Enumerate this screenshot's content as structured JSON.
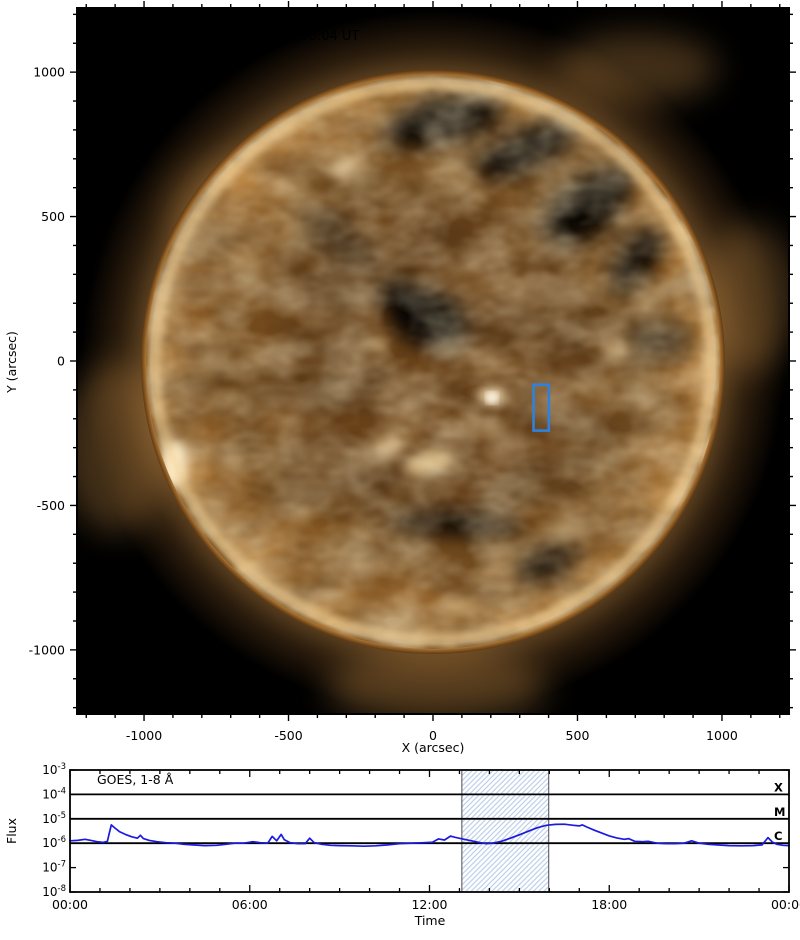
{
  "colors": {
    "figure_background": "#ffffff",
    "sun_plot_background": "#000000",
    "title_text": "#e9e7e2",
    "axis_text": "#000000",
    "goes_line_blue": "#1a1ae0",
    "annotation_blue": "#2e82dd",
    "hatch_blue": "#b9cce8",
    "hatch_border_gray": "#4d4d4d"
  },
  "chart_data": [
    {
      "type": "image",
      "title": "AIA 0193, 17-Nov-2025, 12:00:04 UT",
      "xlabel": "X (arcsec)",
      "ylabel": "Y (arcsec)",
      "xlim": [
        -1232,
        1232
      ],
      "ylim": [
        -1222,
        1222
      ],
      "x_ticks": [
        -1000,
        -500,
        0,
        500,
        1000
      ],
      "y_ticks": [
        1000,
        500,
        0,
        -500,
        -1000
      ],
      "minor_tick_step": 100,
      "annotation_box": {
        "x_arcsec": [
          348,
          401
        ],
        "y_arcsec": [
          -241,
          -82
        ]
      },
      "description": "SDO/AIA 193 A full-disk EUV solar image in gold/sepia tones: bright limb ring and corona glow, dark coronal holes across the northern hemisphere and center, dark southern filament channel, bright active regions near disk center and on the east/west limbs; blue rectangle marks a target region south-west of disk center."
    },
    {
      "type": "line",
      "legend": "GOES, 1-8 Å",
      "xlabel": "Time",
      "ylabel": "Flux",
      "xlim_hours": [
        0,
        24
      ],
      "x_tick_hours": [
        0,
        6,
        12,
        18,
        24
      ],
      "x_tick_labels": [
        "00:00",
        "06:00",
        "12:00",
        "18:00",
        "00:00"
      ],
      "x_minor_step_hours": 1,
      "ylim": [
        1e-08,
        0.001
      ],
      "y_tick_exponents": [
        -3,
        -4,
        -5,
        -6,
        -7,
        -8
      ],
      "flare_class_lines": [
        {
          "label": "X",
          "flux": 0.0001
        },
        {
          "label": "M",
          "flux": 1e-05
        },
        {
          "label": "C",
          "flux": 1e-06
        }
      ],
      "hatched_region_hours": [
        13.08,
        15.98
      ],
      "series": [
        {
          "name": "GOES, 1-8 Å",
          "color": "#1a1ae0",
          "points": [
            [
              0,
              1.25e-06
            ],
            [
              0.25,
              1.3e-06
            ],
            [
              0.5,
              1.45e-06
            ],
            [
              0.7,
              1.3e-06
            ],
            [
              0.9,
              1.15e-06
            ],
            [
              1.1,
              1.08e-06
            ],
            [
              1.25,
              1.2e-06
            ],
            [
              1.3,
              2.2e-06
            ],
            [
              1.38,
              5.6e-06
            ],
            [
              1.5,
              4.2e-06
            ],
            [
              1.65,
              3e-06
            ],
            [
              1.85,
              2.3e-06
            ],
            [
              2.05,
              1.85e-06
            ],
            [
              2.25,
              1.6e-06
            ],
            [
              2.35,
              2.1e-06
            ],
            [
              2.45,
              1.55e-06
            ],
            [
              2.65,
              1.3e-06
            ],
            [
              2.9,
              1.15e-06
            ],
            [
              3.2,
              1.05e-06
            ],
            [
              3.5,
              1e-06
            ],
            [
              3.8,
              9e-07
            ],
            [
              4.1,
              8.5e-07
            ],
            [
              4.5,
              8e-07
            ],
            [
              4.9,
              8.2e-07
            ],
            [
              5.2,
              9e-07
            ],
            [
              5.5,
              1e-06
            ],
            [
              5.8,
              1e-06
            ],
            [
              6.1,
              1.15e-06
            ],
            [
              6.35,
              1.05e-06
            ],
            [
              6.6,
              1e-06
            ],
            [
              6.75,
              1.9e-06
            ],
            [
              6.9,
              1.25e-06
            ],
            [
              7.05,
              2.3e-06
            ],
            [
              7.15,
              1.4e-06
            ],
            [
              7.35,
              1.05e-06
            ],
            [
              7.6,
              9.5e-07
            ],
            [
              7.85,
              9.5e-07
            ],
            [
              8.0,
              1.6e-06
            ],
            [
              8.15,
              1.05e-06
            ],
            [
              8.4,
              9e-07
            ],
            [
              8.7,
              8.2e-07
            ],
            [
              9.0,
              8e-07
            ],
            [
              9.4,
              7.8e-07
            ],
            [
              9.8,
              7.5e-07
            ],
            [
              10.2,
              7.8e-07
            ],
            [
              10.6,
              8.5e-07
            ],
            [
              11.0,
              9.5e-07
            ],
            [
              11.4,
              1e-06
            ],
            [
              11.8,
              1.05e-06
            ],
            [
              12.1,
              1.1e-06
            ],
            [
              12.3,
              1.5e-06
            ],
            [
              12.5,
              1.35e-06
            ],
            [
              12.7,
              1.95e-06
            ],
            [
              12.85,
              1.75e-06
            ],
            [
              13.1,
              1.5e-06
            ],
            [
              13.4,
              1.25e-06
            ],
            [
              13.7,
              1.05e-06
            ],
            [
              13.9,
              9.5e-07
            ],
            [
              14.1,
              1e-06
            ],
            [
              14.4,
              1.2e-06
            ],
            [
              14.7,
              1.6e-06
            ],
            [
              15.0,
              2.2e-06
            ],
            [
              15.3,
              3.1e-06
            ],
            [
              15.6,
              4.3e-06
            ],
            [
              15.9,
              5.4e-06
            ],
            [
              16.2,
              5.9e-06
            ],
            [
              16.5,
              6e-06
            ],
            [
              16.8,
              5.4e-06
            ],
            [
              17.0,
              5.1e-06
            ],
            [
              17.1,
              5.6e-06
            ],
            [
              17.25,
              4.6e-06
            ],
            [
              17.5,
              3.4e-06
            ],
            [
              17.75,
              2.6e-06
            ],
            [
              18.0,
              2e-06
            ],
            [
              18.25,
              1.65e-06
            ],
            [
              18.5,
              1.45e-06
            ],
            [
              18.65,
              1.55e-06
            ],
            [
              18.85,
              1.2e-06
            ],
            [
              19.1,
              1.15e-06
            ],
            [
              19.3,
              1.2e-06
            ],
            [
              19.6,
              1e-06
            ],
            [
              19.9,
              9.5e-07
            ],
            [
              20.2,
              9.5e-07
            ],
            [
              20.5,
              1e-06
            ],
            [
              20.75,
              1.25e-06
            ],
            [
              21.0,
              1e-06
            ],
            [
              21.3,
              9e-07
            ],
            [
              21.6,
              8.5e-07
            ],
            [
              22.0,
              8e-07
            ],
            [
              22.4,
              7.8e-07
            ],
            [
              22.8,
              8e-07
            ],
            [
              23.1,
              8.5e-07
            ],
            [
              23.3,
              1.7e-06
            ],
            [
              23.45,
              1.1e-06
            ],
            [
              23.6,
              9e-07
            ],
            [
              23.8,
              8.2e-07
            ],
            [
              24,
              8e-07
            ]
          ]
        }
      ]
    }
  ]
}
